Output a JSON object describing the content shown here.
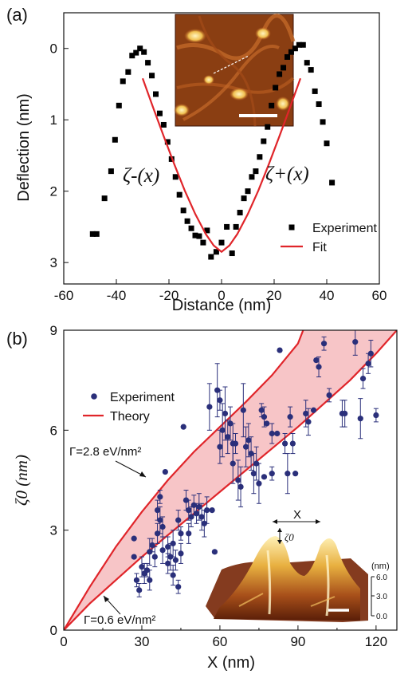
{
  "panels": {
    "a": {
      "label": "(a)",
      "ylabel": "Deflection (nm)",
      "xlabel": "Distance (nm)",
      "zeta_minus_label": "ζ-(x)",
      "zeta_plus_label": "ζ+(x)"
    },
    "b": {
      "label": "(b)",
      "ylabel": "ζ0 (nm)",
      "xlabel": "X (nm)",
      "gamma_high_label": "Γ=2.8 eV/nm²",
      "gamma_low_label": "Γ=0.6 eV/nm²",
      "inset_x_label": "X",
      "inset_zeta_label": "ζ0",
      "inset_scale_unit": "(nm)",
      "inset_scale_ticks": [
        "6.0",
        "3.0",
        "0.0"
      ]
    }
  },
  "colors": {
    "experiment_a": "#000000",
    "experiment_b": "#2a2f7a",
    "fit": "#e0252a",
    "theory_band": "#f7c5c7",
    "afm_background": "#8a3e12",
    "afm_feature": "#f2d67a",
    "scale_bar": "#ffffff"
  },
  "chart_data": [
    {
      "type": "scatter",
      "panel": "a",
      "xlabel": "Distance (nm)",
      "ylabel": "Deflection (nm)",
      "xlim": [
        -60,
        60
      ],
      "ylim": [
        3.3,
        -0.5
      ],
      "y_inverted": true,
      "xticks": [
        -60,
        -40,
        -20,
        0,
        20,
        40,
        60
      ],
      "yticks": [
        0,
        1,
        2,
        3
      ],
      "legend_position": "bottom-right",
      "series": [
        {
          "name": "Experiment",
          "marker": "square",
          "x": [
            -49,
            -47.5,
            -44.5,
            -42,
            -40.5,
            -39,
            -37.5,
            -35.5,
            -34,
            -32.5,
            -31,
            -29.5,
            -28,
            -26.5,
            -25,
            -23.5,
            -22,
            -20.5,
            -19,
            -17.5,
            -16,
            -14.5,
            -13,
            -11.5,
            -10,
            -8.5,
            -7,
            -5.5,
            -4,
            -2,
            0,
            2,
            4,
            5.5,
            7,
            8.5,
            10,
            11.5,
            13,
            14.5,
            16,
            17.5,
            19,
            20.5,
            22,
            23.5,
            25,
            26.5,
            28,
            29.5,
            31,
            32.5,
            34,
            35.5,
            37,
            38.5,
            40,
            42
          ],
          "y": [
            2.6,
            2.6,
            2.1,
            1.72,
            1.28,
            0.8,
            0.46,
            0.33,
            0.1,
            0.06,
            0.0,
            0.05,
            0.2,
            0.38,
            0.64,
            0.91,
            1.07,
            1.31,
            1.55,
            1.8,
            2.05,
            2.27,
            2.42,
            2.52,
            2.62,
            2.63,
            2.72,
            2.55,
            2.92,
            2.85,
            2.72,
            2.5,
            2.87,
            2.5,
            2.3,
            2.1,
            2.0,
            1.8,
            1.72,
            1.52,
            1.3,
            1.1,
            0.8,
            0.55,
            0.36,
            0.27,
            0.12,
            0.05,
            0.0,
            -0.05,
            -0.05,
            0.2,
            0.3,
            0.6,
            0.78,
            1.03,
            1.33,
            1.88
          ]
        },
        {
          "name": "Fit",
          "style": "line",
          "x": [
            -30,
            -26,
            -22,
            -18,
            -14,
            -10,
            -6,
            -3,
            0,
            3,
            6,
            10,
            14,
            18,
            22,
            26,
            30
          ],
          "y": [
            0.42,
            0.83,
            1.23,
            1.62,
            1.99,
            2.32,
            2.6,
            2.76,
            2.85,
            2.76,
            2.6,
            2.32,
            1.99,
            1.62,
            1.23,
            0.83,
            0.42
          ]
        }
      ]
    },
    {
      "type": "scatter",
      "panel": "b",
      "xlabel": "X (nm)",
      "ylabel": "ζ0 (nm)",
      "xlim": [
        0,
        128
      ],
      "ylim": [
        0,
        9
      ],
      "xticks": [
        0,
        30,
        60,
        90,
        120
      ],
      "yticks": [
        0,
        3,
        6,
        9
      ],
      "legend_position": "top-left",
      "series": [
        {
          "name": "Experiment",
          "marker": "circle",
          "points": [
            [
              27,
              2.75,
              0
            ],
            [
              27,
              2.2,
              0
            ],
            [
              28,
              1.5,
              0.2
            ],
            [
              29,
              1.2,
              0.2
            ],
            [
              30,
              1.9,
              0.3
            ],
            [
              31,
              1.7,
              0.3
            ],
            [
              32,
              1.8,
              0.2
            ],
            [
              33,
              2.35,
              0.4
            ],
            [
              33,
              1.5,
              0.3
            ],
            [
              34,
              2.55,
              0.2
            ],
            [
              35,
              2.2,
              0.3
            ],
            [
              36,
              2.9,
              0.3
            ],
            [
              36,
              3.6,
              0.3
            ],
            [
              37,
              3.3,
              0.4
            ],
            [
              37,
              4.0,
              0.2
            ],
            [
              38,
              3.1,
              0.3
            ],
            [
              38,
              2.4,
              0.4
            ],
            [
              39,
              4.75,
              0
            ],
            [
              40,
              2.5,
              0.3
            ],
            [
              40,
              2.0,
              0.3
            ],
            [
              41,
              2.2,
              0.4
            ],
            [
              42,
              1.65,
              0.3
            ],
            [
              42,
              2.6,
              0.4
            ],
            [
              43,
              2.1,
              0.3
            ],
            [
              44,
              1.3,
              0.2
            ],
            [
              44,
              3.3,
              0.3
            ],
            [
              45,
              2.9,
              0.2
            ],
            [
              45,
              2.3,
              0.3
            ],
            [
              46,
              6.1,
              0
            ],
            [
              47,
              3.9,
              0.3
            ],
            [
              48,
              3.6,
              0.3
            ],
            [
              48,
              2.9,
              0.3
            ],
            [
              49,
              3.4,
              0.3
            ],
            [
              50,
              3.75,
              0.3
            ],
            [
              51,
              3.5,
              0.3
            ],
            [
              52,
              3.7,
              0.4
            ],
            [
              53,
              3.4,
              0.4
            ],
            [
              54,
              3.2,
              0.4
            ],
            [
              55,
              3.6,
              0.4
            ],
            [
              56,
              6.7,
              0.7
            ],
            [
              57,
              3.6,
              0
            ],
            [
              58,
              2.35,
              0
            ],
            [
              59,
              7.2,
              0.8
            ],
            [
              60,
              6.9,
              0.3
            ],
            [
              60,
              5.5,
              0.5
            ],
            [
              61,
              6.0,
              0.8
            ],
            [
              62,
              6.5,
              0.8
            ],
            [
              63,
              5.8,
              0.5
            ],
            [
              64,
              6.2,
              0.5
            ],
            [
              65,
              5.6,
              0.6
            ],
            [
              65,
              5.0,
              0.6
            ],
            [
              66,
              5.6,
              0.3
            ],
            [
              67,
              4.5,
              0.6
            ],
            [
              68,
              4.3,
              0.6
            ],
            [
              69,
              6.6,
              0.8
            ],
            [
              70,
              5.5,
              0.6
            ],
            [
              71,
              5.7,
              0.5
            ],
            [
              72,
              5.3,
              0.5
            ],
            [
              73,
              4.7,
              0.6
            ],
            [
              74,
              5.0,
              0.5
            ],
            [
              75,
              4.4,
              0.6
            ],
            [
              76,
              6.6,
              0.2
            ],
            [
              77,
              6.4,
              0.3
            ],
            [
              77,
              4.6,
              0
            ],
            [
              78,
              6.2,
              0
            ],
            [
              80,
              5.9,
              0.3
            ],
            [
              80,
              4.7,
              0.2
            ],
            [
              82,
              5.9,
              0
            ],
            [
              83,
              8.4,
              0
            ],
            [
              85,
              5.6,
              0.3
            ],
            [
              86,
              4.7,
              0.6
            ],
            [
              87,
              6.4,
              0.3
            ],
            [
              88,
              5.6,
              0.3
            ],
            [
              89,
              4.7,
              0
            ],
            [
              93,
              6.5,
              0.4
            ],
            [
              94,
              6.25,
              0.4
            ],
            [
              96,
              6.6,
              0
            ],
            [
              97,
              8.1,
              0
            ],
            [
              98,
              7.9,
              0.3
            ],
            [
              100,
              8.6,
              0.2
            ],
            [
              102,
              7.05,
              0.2
            ],
            [
              107,
              6.5,
              0.4
            ],
            [
              108,
              6.5,
              0.4
            ],
            [
              112,
              8.65,
              0.4
            ],
            [
              114,
              6.35,
              0.6
            ],
            [
              115,
              7.55,
              0.3
            ],
            [
              117,
              8.0,
              0.3
            ],
            [
              118,
              8.3,
              0.4
            ],
            [
              120,
              6.45,
              0.2
            ]
          ]
        },
        {
          "name": "Theory",
          "style": "line",
          "curves": [
            {
              "label": "Γ=2.8 eV/nm²",
              "x": [
                0,
                10,
                20,
                30,
                40,
                50,
                60,
                70,
                80,
                90,
                92
              ],
              "y": [
                0,
                1.3,
                2.5,
                3.55,
                4.5,
                5.35,
                6.1,
                6.85,
                7.65,
                8.6,
                9.0
              ]
            },
            {
              "label": "Γ=0.6 eV/nm²",
              "x": [
                0,
                10,
                20,
                30,
                40,
                50,
                60,
                70,
                80,
                90,
                100,
                110,
                120,
                128
              ],
              "y": [
                0,
                0.8,
                1.5,
                2.2,
                2.85,
                3.5,
                4.15,
                4.8,
                5.45,
                6.1,
                6.8,
                7.5,
                8.3,
                9.0
              ]
            }
          ]
        }
      ]
    }
  ]
}
